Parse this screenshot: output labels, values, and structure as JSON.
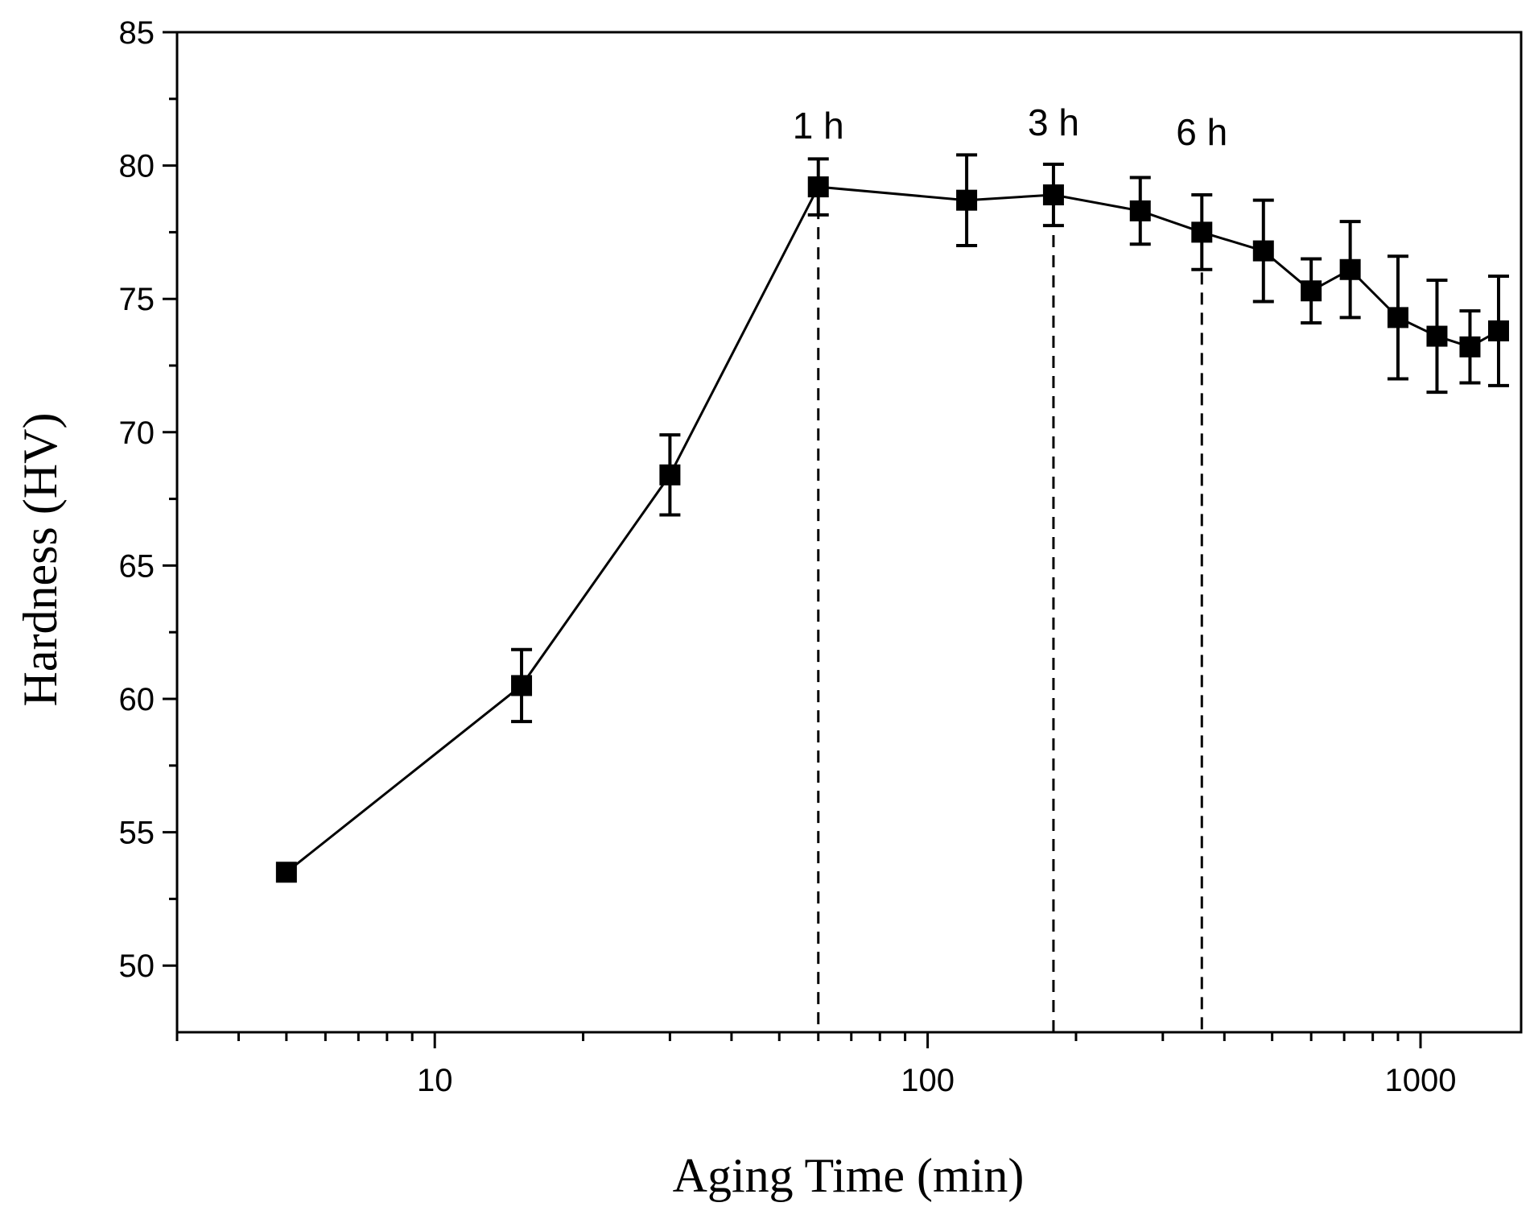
{
  "chart_data": {
    "type": "line",
    "title": "",
    "xlabel": "Aging Time (min)",
    "ylabel": "Hardness (HV)",
    "xscale": "log",
    "xlim": [
      3,
      1600
    ],
    "ylim": [
      47.5,
      85
    ],
    "xticks": [
      10,
      100,
      1000
    ],
    "xtick_labels": [
      "10",
      "100",
      "1000"
    ],
    "yticks": [
      50,
      55,
      60,
      65,
      70,
      75,
      80,
      85
    ],
    "ytick_labels": [
      "50",
      "55",
      "60",
      "65",
      "70",
      "75",
      "80",
      "85"
    ],
    "grid": false,
    "marker": "square",
    "color": "#000000",
    "series": [
      {
        "name": "Hardness",
        "x": [
          5,
          15,
          30,
          60,
          120,
          180,
          270,
          360,
          480,
          600,
          720,
          900,
          1080,
          1260,
          1440
        ],
        "y": [
          53.5,
          60.5,
          68.4,
          79.2,
          78.7,
          78.9,
          78.3,
          77.5,
          76.8,
          75.3,
          76.1,
          74.3,
          73.6,
          73.2,
          73.8
        ],
        "err": [
          0,
          1.35,
          1.5,
          1.05,
          1.7,
          1.15,
          1.25,
          1.4,
          1.9,
          1.2,
          1.8,
          2.3,
          2.1,
          1.35,
          2.05
        ]
      }
    ],
    "annotations": [
      {
        "text": "1 h",
        "x": 60
      },
      {
        "text": "3 h",
        "x": 180
      },
      {
        "text": "6 h",
        "x": 360
      }
    ]
  }
}
